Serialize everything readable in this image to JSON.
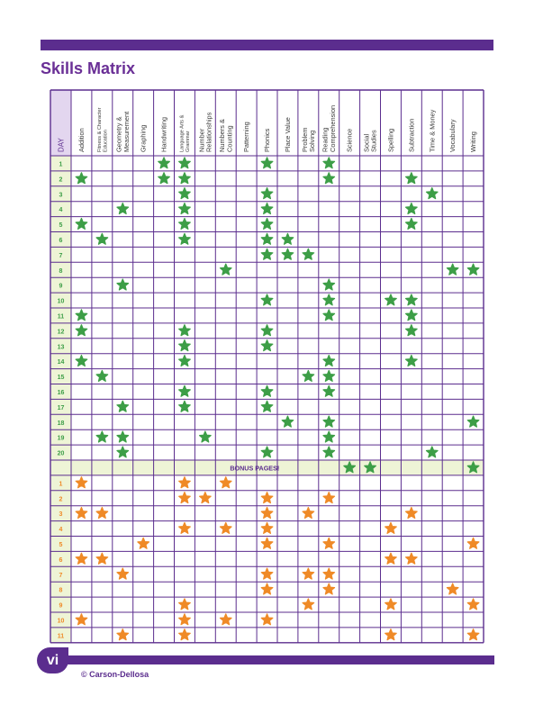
{
  "page": {
    "title": "Skills Matrix",
    "page_number": "vi",
    "copyright": "© Carson-Dellosa"
  },
  "colors": {
    "purple": "#5b2d8e",
    "header_day_fill": "#e3d6ef",
    "row_number_fill": "#eef4d6",
    "green_star": "#3d9e47",
    "orange_star": "#ef8a27"
  },
  "matrix": {
    "day_header": "DAY",
    "bonus_label": "BONUS PAGES!",
    "columns": [
      "Addition",
      "Fitness & Character Education",
      "Geometry & Measurement",
      "Graphing",
      "Handwriting",
      "Language Arts & Grammar",
      "Number Relationships",
      "Numbers & Counting",
      "Patterning",
      "Phonics",
      "Place Value",
      "Problem Solving",
      "Reading Comprehension",
      "Science",
      "Social Studies",
      "Spelling",
      "Subtraction",
      "Time & Money",
      "Vocabulary",
      "Writing"
    ],
    "days": [
      {
        "label": "1",
        "stars": [
          4,
          5,
          9,
          12
        ]
      },
      {
        "label": "2",
        "stars": [
          0,
          4,
          5,
          12,
          16
        ]
      },
      {
        "label": "3",
        "stars": [
          5,
          9,
          17
        ]
      },
      {
        "label": "4",
        "stars": [
          2,
          5,
          9,
          16
        ]
      },
      {
        "label": "5",
        "stars": [
          0,
          5,
          9,
          16
        ]
      },
      {
        "label": "6",
        "stars": [
          1,
          5,
          9,
          10
        ]
      },
      {
        "label": "7",
        "stars": [
          9,
          10,
          11
        ]
      },
      {
        "label": "8",
        "stars": [
          7,
          18,
          19
        ]
      },
      {
        "label": "9",
        "stars": [
          2,
          12
        ]
      },
      {
        "label": "10",
        "stars": [
          9,
          12,
          15,
          16
        ]
      },
      {
        "label": "11",
        "stars": [
          0,
          12,
          16
        ]
      },
      {
        "label": "12",
        "stars": [
          0,
          5,
          9,
          16
        ]
      },
      {
        "label": "13",
        "stars": [
          5,
          9
        ]
      },
      {
        "label": "14",
        "stars": [
          0,
          5,
          12,
          16
        ]
      },
      {
        "label": "15",
        "stars": [
          1,
          11,
          12
        ]
      },
      {
        "label": "16",
        "stars": [
          5,
          9,
          12
        ]
      },
      {
        "label": "17",
        "stars": [
          2,
          5,
          9
        ]
      },
      {
        "label": "18",
        "stars": [
          10,
          12,
          19
        ]
      },
      {
        "label": "19",
        "stars": [
          1,
          2,
          6,
          12
        ]
      },
      {
        "label": "20",
        "stars": [
          2,
          9,
          12,
          17
        ]
      }
    ],
    "bonus_stars": [
      13,
      14,
      19
    ],
    "bonus": [
      {
        "label": "1",
        "stars": [
          0,
          5,
          7
        ]
      },
      {
        "label": "2",
        "stars": [
          5,
          6,
          9,
          12
        ]
      },
      {
        "label": "3",
        "stars": [
          0,
          1,
          9,
          11,
          16
        ]
      },
      {
        "label": "4",
        "stars": [
          5,
          7,
          9,
          15
        ]
      },
      {
        "label": "5",
        "stars": [
          3,
          9,
          12,
          19
        ]
      },
      {
        "label": "6",
        "stars": [
          0,
          1,
          15,
          16
        ]
      },
      {
        "label": "7",
        "stars": [
          2,
          9,
          11,
          12
        ]
      },
      {
        "label": "8",
        "stars": [
          9,
          12,
          18
        ]
      },
      {
        "label": "9",
        "stars": [
          5,
          11,
          15,
          19
        ]
      },
      {
        "label": "10",
        "stars": [
          0,
          5,
          7,
          9
        ]
      },
      {
        "label": "11",
        "stars": [
          2,
          5,
          15,
          19
        ]
      }
    ]
  }
}
